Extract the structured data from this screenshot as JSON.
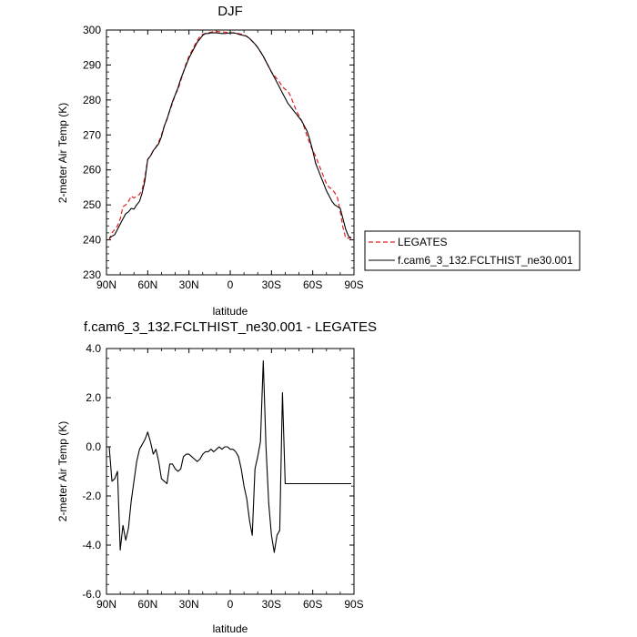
{
  "chart_data": [
    {
      "type": "line",
      "title": "DJF",
      "xlabel": "latitude",
      "ylabel": "2-meter Air Temp (K)",
      "xlim": [
        90,
        -90
      ],
      "ylim": [
        230,
        300
      ],
      "xticks": [
        90,
        60,
        30,
        0,
        -30,
        -60,
        -90
      ],
      "xtick_labels": [
        "90N",
        "60N",
        "30N",
        "0",
        "30S",
        "60S",
        "90S"
      ],
      "yticks": [
        230,
        240,
        250,
        260,
        270,
        280,
        290,
        300
      ],
      "ytick_labels": [
        "230",
        "240",
        "250",
        "260",
        "270",
        "280",
        "290",
        "300"
      ],
      "legend_position": "right",
      "series": [
        {
          "name": "LEGATES",
          "style": "dashed",
          "color": "#e02020",
          "x": [
            88,
            86,
            84,
            82,
            80,
            78,
            76,
            74,
            72,
            70,
            68,
            66,
            64,
            62,
            60,
            58,
            56,
            54,
            52,
            50,
            48,
            46,
            44,
            42,
            40,
            38,
            36,
            34,
            32,
            30,
            28,
            26,
            24,
            22,
            20,
            18,
            16,
            14,
            12,
            10,
            8,
            6,
            4,
            2,
            0,
            -2,
            -4,
            -6,
            -8,
            -10,
            -12,
            -14,
            -16,
            -18,
            -20,
            -22,
            -24,
            -26,
            -28,
            -30,
            -32,
            -34,
            -36,
            -38,
            -40,
            -42,
            -44,
            -46,
            -48,
            -50,
            -52,
            -54,
            -56,
            -58,
            -60,
            -62,
            -64,
            -66,
            -68,
            -70,
            -72,
            -74,
            -76,
            -78,
            -80,
            -82,
            -84,
            -86,
            -88
          ],
          "values": [
            240.0,
            242.0,
            243.0,
            244.0,
            246.0,
            249.5,
            250.0,
            251.0,
            252.5,
            252.0,
            252.5,
            253.0,
            254.5,
            258.0,
            263.0,
            264.0,
            265.5,
            266.5,
            268.0,
            270.0,
            272.5,
            274.5,
            277.0,
            279.0,
            281.5,
            283.0,
            285.5,
            288.0,
            290.5,
            292.5,
            294.0,
            295.5,
            297.0,
            298.2,
            298.8,
            299.0,
            299.2,
            299.4,
            299.5,
            299.6,
            299.5,
            299.5,
            299.4,
            299.3,
            299.2,
            299.2,
            299.1,
            299.0,
            298.8,
            298.6,
            298.2,
            297.6,
            296.8,
            296.0,
            295.0,
            293.8,
            292.5,
            291.0,
            289.5,
            288.0,
            287.0,
            286.0,
            285.0,
            283.8,
            283.0,
            282.5,
            281.0,
            279.0,
            277.0,
            275.5,
            274.0,
            272.0,
            269.5,
            267.5,
            265.5,
            264.0,
            262.0,
            260.0,
            258.0,
            256.0,
            255.0,
            254.5,
            253.5,
            252.0,
            248.0,
            243.5,
            240.5,
            240.5,
            240.5
          ]
        },
        {
          "name": "f.cam6_3_132.FCLTHIST_ne30.001",
          "style": "solid",
          "color": "#000000",
          "x": [
            88,
            86,
            84,
            82,
            80,
            78,
            76,
            74,
            72,
            70,
            68,
            66,
            64,
            62,
            60,
            58,
            56,
            54,
            52,
            50,
            48,
            46,
            44,
            42,
            40,
            38,
            36,
            34,
            32,
            30,
            28,
            26,
            24,
            22,
            20,
            18,
            16,
            14,
            12,
            10,
            8,
            6,
            4,
            2,
            0,
            -2,
            -4,
            -6,
            -8,
            -10,
            -12,
            -14,
            -16,
            -18,
            -20,
            -22,
            -24,
            -26,
            -28,
            -30,
            -32,
            -34,
            -36,
            -38,
            -40,
            -42,
            -44,
            -46,
            -48,
            -50,
            -52,
            -54,
            -56,
            -58,
            -60,
            -62,
            -64,
            -66,
            -68,
            -70,
            -72,
            -74,
            -76,
            -78,
            -80,
            -82,
            -84,
            -86,
            -88
          ],
          "values": [
            240.5,
            241.0,
            241.5,
            243.0,
            244.5,
            246.0,
            247.5,
            248.0,
            249.0,
            248.8,
            250.0,
            251.0,
            253.5,
            257.0,
            263.0,
            264.0,
            265.5,
            266.5,
            267.5,
            269.5,
            272.5,
            274.5,
            277.0,
            279.5,
            281.5,
            283.5,
            286.0,
            288.0,
            290.0,
            292.0,
            293.5,
            295.0,
            296.5,
            297.5,
            298.5,
            299.0,
            299.0,
            299.2,
            299.2,
            299.2,
            299.1,
            299.0,
            299.0,
            299.1,
            299.2,
            299.2,
            299.1,
            298.8,
            298.6,
            298.4,
            298.2,
            297.6,
            296.8,
            296.0,
            295.0,
            293.8,
            292.5,
            291.0,
            289.5,
            288.0,
            286.5,
            285.0,
            283.5,
            282.0,
            280.5,
            279.0,
            278.0,
            277.0,
            276.0,
            275.0,
            274.0,
            272.5,
            271.0,
            268.5,
            265.5,
            262.0,
            260.0,
            258.0,
            256.0,
            254.0,
            252.5,
            251.0,
            250.0,
            249.5,
            249.0,
            246.0,
            243.0,
            241.0,
            240.5
          ]
        }
      ]
    },
    {
      "type": "line",
      "title": "f.cam6_3_132.FCLTHIST_ne30.001 - LEGATES",
      "xlabel": "latitude",
      "ylabel": "2-meter Air Temp (K)",
      "xlim": [
        90,
        -90
      ],
      "ylim": [
        -6.0,
        4.0
      ],
      "xticks": [
        90,
        60,
        30,
        0,
        -30,
        -60,
        -90
      ],
      "xtick_labels": [
        "90N",
        "60N",
        "30N",
        "0",
        "30S",
        "60S",
        "90S"
      ],
      "yticks": [
        -6.0,
        -4.0,
        -2.0,
        0.0,
        2.0,
        4.0
      ],
      "ytick_labels": [
        "-6.0",
        "-4.0",
        "-2.0",
        "0.0",
        "2.0",
        "4.0"
      ],
      "series": [
        {
          "style": "solid",
          "color": "#000000",
          "x": [
            88,
            86,
            84,
            82,
            80,
            78,
            76,
            74,
            72,
            70,
            68,
            66,
            64,
            62,
            60,
            58,
            56,
            54,
            52,
            50,
            48,
            46,
            44,
            42,
            40,
            38,
            36,
            34,
            32,
            30,
            28,
            26,
            24,
            22,
            20,
            18,
            16,
            14,
            12,
            10,
            8,
            6,
            4,
            2,
            0,
            -2,
            -4,
            -6,
            -8,
            -10,
            -12,
            -14,
            -16,
            -18,
            -20,
            -22,
            -24,
            -26,
            -28,
            -30,
            -32,
            -34,
            -36,
            -38,
            -40,
            -42,
            -44,
            -46,
            -48,
            -50,
            -52,
            -54,
            -56,
            -58,
            -60,
            -62,
            -64,
            -66,
            -68,
            -70,
            -72,
            -74,
            -76,
            -78,
            -80,
            -82,
            -84,
            -86,
            -88
          ],
          "values": [
            0.0,
            -1.4,
            -1.3,
            -1.0,
            -4.2,
            -3.2,
            -3.8,
            -3.3,
            -2.2,
            -1.4,
            -0.6,
            -0.1,
            0.1,
            0.3,
            0.6,
            0.2,
            -0.3,
            -0.1,
            -0.6,
            -1.3,
            -1.4,
            -1.5,
            -0.7,
            -0.7,
            -0.9,
            -1.0,
            -0.9,
            -0.4,
            -0.3,
            -0.3,
            -0.4,
            -0.5,
            -0.6,
            -0.5,
            -0.3,
            -0.2,
            -0.2,
            -0.1,
            -0.2,
            -0.1,
            0.0,
            -0.1,
            0.0,
            0.0,
            -0.1,
            -0.1,
            -0.2,
            -0.4,
            -0.9,
            -1.6,
            -2.1,
            -3.0,
            -3.6,
            -0.9,
            -0.4,
            0.2,
            3.5,
            0.0,
            -2.3,
            -3.6,
            -4.3,
            -3.6,
            -3.4,
            2.2,
            -1.5,
            -1.5,
            -1.5,
            -1.5,
            -1.5,
            -1.5,
            -1.5,
            -1.5,
            -1.5,
            -1.5,
            -1.5,
            -1.5,
            -1.5,
            -1.5,
            -1.5,
            -1.5,
            -1.5,
            -1.5,
            -1.5,
            -1.5,
            -1.5,
            -1.5,
            -1.5,
            -1.5,
            -1.5
          ]
        }
      ]
    }
  ]
}
